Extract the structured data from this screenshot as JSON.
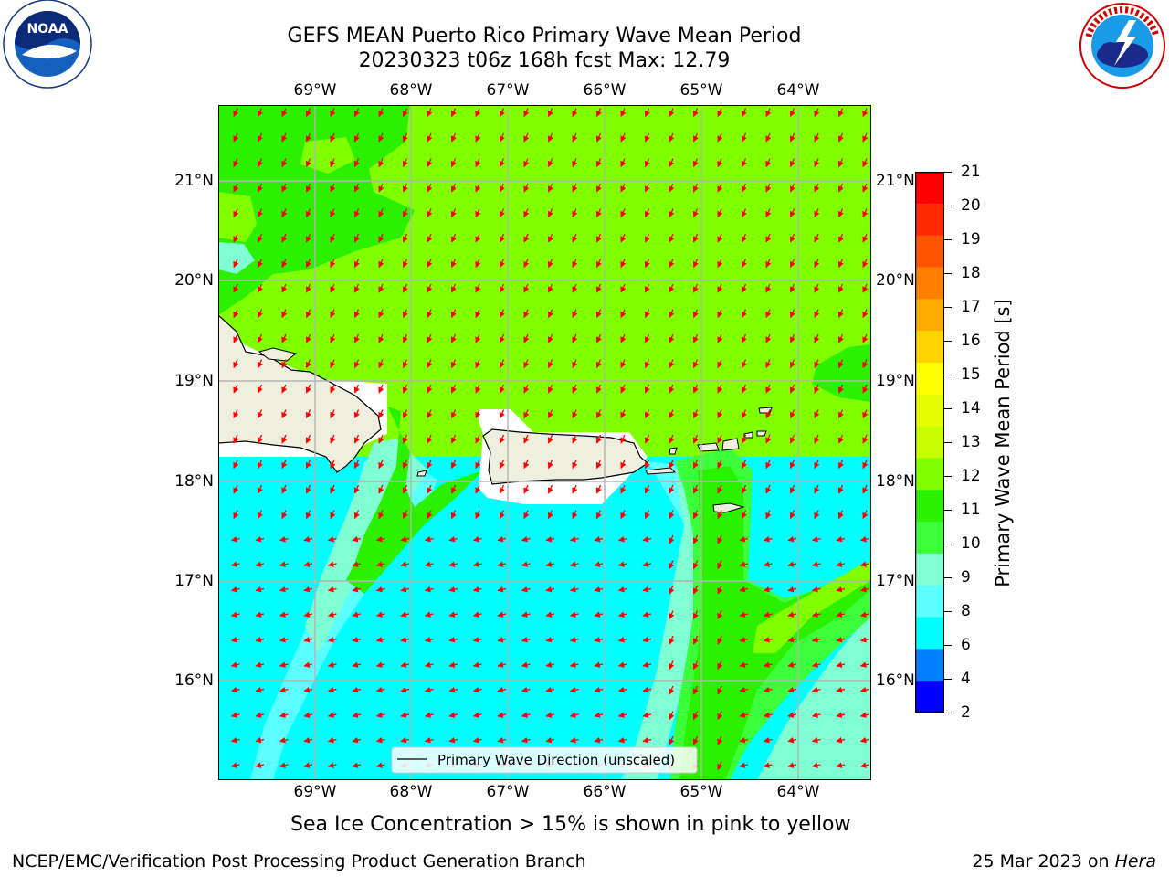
{
  "title": {
    "line1": "GEFS MEAN Puerto Rico Primary Wave Mean Period",
    "line2": "20230323 t06z 168h fcst   Max: 12.79"
  },
  "logos": {
    "noaa_text": "NOAA",
    "noaa_ring": "NATIONAL OCEANIC AND ATMOSPHERIC ADMINISTRATION · U.S. DEPARTMENT OF COMMERCE",
    "nws_ring": "NATIONAL WEATHER SERVICE"
  },
  "map": {
    "lon_labels": [
      "69°W",
      "68°W",
      "67°W",
      "66°W",
      "65°W",
      "64°W"
    ],
    "lat_labels": [
      "21°N",
      "20°N",
      "19°N",
      "18°N",
      "17°N",
      "16°N"
    ],
    "legend_label": "Primary Wave Direction (unscaled)",
    "arrow_color": "#ff0000",
    "land_color": "#efefe0"
  },
  "colorbar": {
    "label": "Primary Wave Mean Period [s]",
    "ticks": [
      "21",
      "20",
      "19",
      "18",
      "17",
      "16",
      "15",
      "14",
      "13",
      "12",
      "11",
      "10",
      "9",
      "8",
      "6",
      "4",
      "2"
    ],
    "bands_top_to_bottom": [
      "#ff0000",
      "#ff2a00",
      "#ff5500",
      "#ff8000",
      "#ffaa00",
      "#ffd400",
      "#ffff00",
      "#e6ff00",
      "#c8ff00",
      "#7fff00",
      "#2bf000",
      "#3cff3c",
      "#80ffd4",
      "#5cffff",
      "#00ffff",
      "#007fff",
      "#0000ff"
    ]
  },
  "note": "Sea Ice Concentration > 15% is shown in pink to yellow",
  "footer": {
    "left": "NCEP/EMC/Verification Post Processing Product Generation Branch",
    "right_date": "25 Mar 2023 on ",
    "right_host": "Hera"
  }
}
